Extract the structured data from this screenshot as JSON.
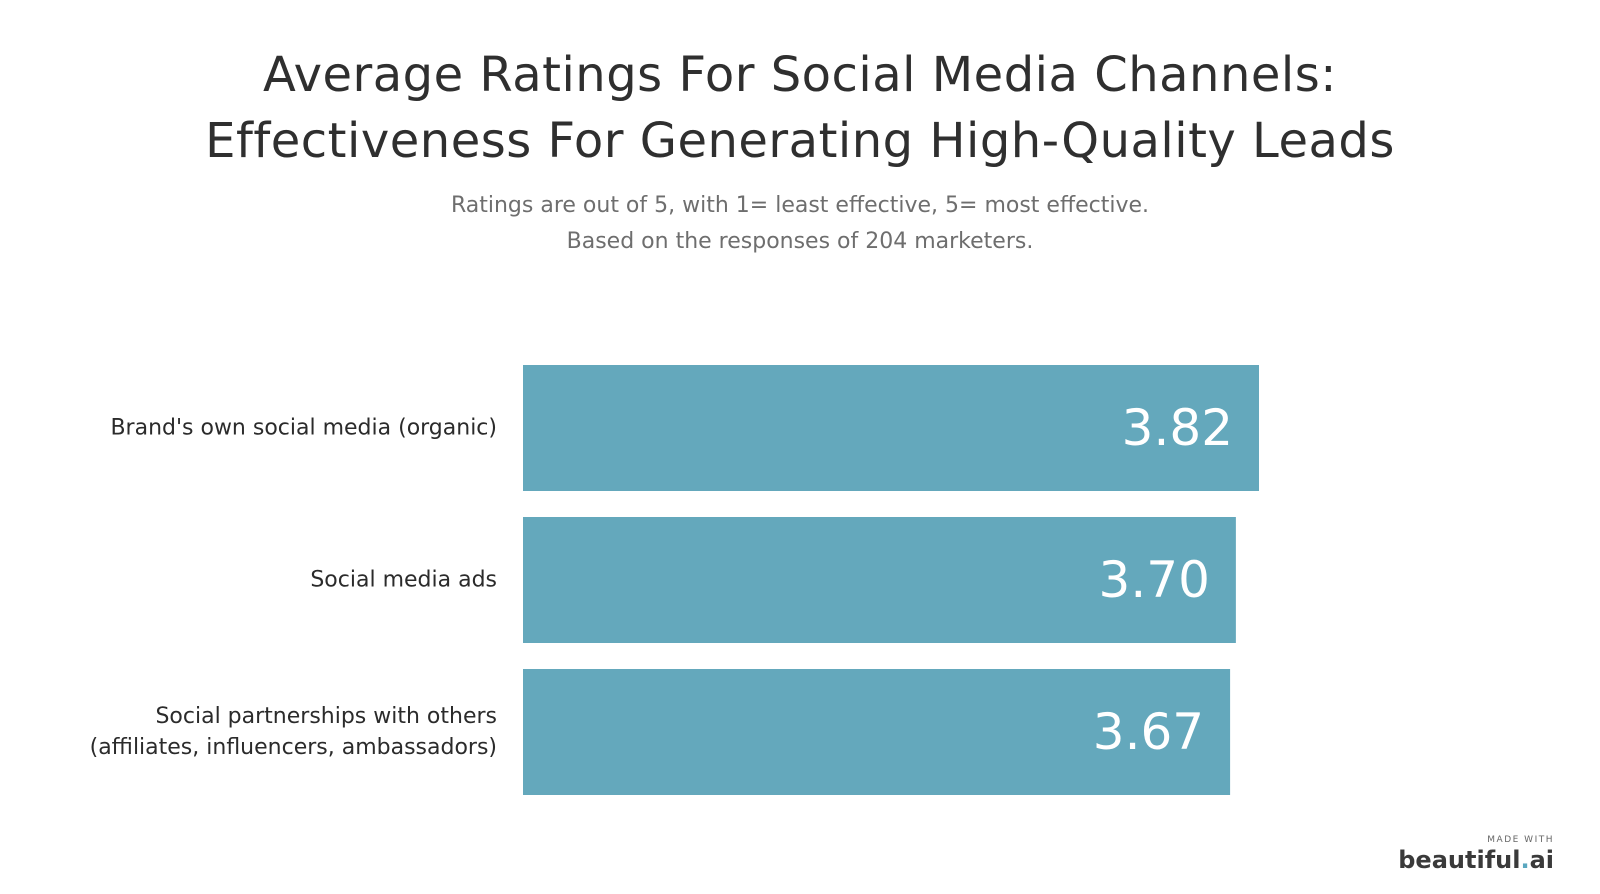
{
  "title_line1": "Average Ratings For Social Media Channels:",
  "title_line2": "Effectiveness For Generating High-Quality Leads",
  "subtitle_line1": "Ratings are out of 5, with 1= least effective, 5= most effective.",
  "subtitle_line2": "Based on the responses of 204 marketers.",
  "credit": {
    "made_with": "MADE WITH",
    "brand_name": "beautiful",
    "brand_dot": ".",
    "brand_suffix": "ai"
  },
  "colors": {
    "bar": "#64a8bc",
    "accent_dot": "#5aa7bf"
  },
  "chart_data": {
    "type": "bar",
    "orientation": "horizontal",
    "categories": [
      [
        "Brand's own social media (organic)"
      ],
      [
        "Social media ads"
      ],
      [
        "Social partnerships with others",
        "(affiliates, influencers, ambassadors)"
      ]
    ],
    "values": [
      3.82,
      3.7,
      3.67
    ],
    "value_labels": [
      "3.82",
      "3.70",
      "3.67"
    ],
    "xlim": [
      0,
      3.82
    ],
    "grid": false,
    "legend": "none"
  }
}
